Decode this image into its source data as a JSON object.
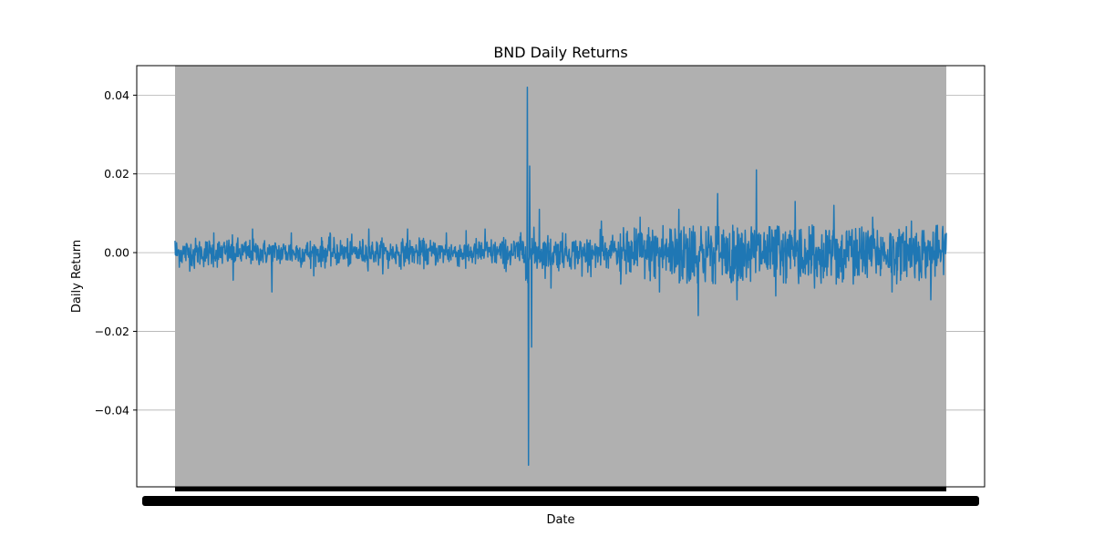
{
  "chart_data": {
    "type": "line",
    "title": "BND Daily Returns",
    "xlabel": "Date",
    "ylabel": "Daily Return",
    "ylim": [
      -0.0595,
      0.0475
    ],
    "yticks": [
      0.04,
      0.02,
      0.0,
      -0.02,
      -0.04
    ],
    "ytick_labels": [
      "0.04",
      "0.02",
      "0.00",
      "−0.02",
      "−0.04"
    ],
    "grid": "y-major",
    "grid_color": "#b0b0b0",
    "background_band_color": "#b0b0b0",
    "series": [
      {
        "color": "#1f77b4",
        "x_index": [
          0,
          50,
          100,
          150,
          200,
          250,
          300,
          350,
          400,
          450,
          500,
          550,
          600,
          650,
          700,
          750,
          800,
          850,
          890,
          905,
          909,
          912,
          915,
          920,
          940,
          970,
          1000,
          1050,
          1100,
          1150,
          1200,
          1250,
          1300,
          1350,
          1400,
          1450,
          1500,
          1550,
          1600,
          1650,
          1700,
          1750,
          1800,
          1850,
          1900,
          1950,
          1990
        ],
        "values": [
          0.003,
          -0.004,
          0.005,
          -0.007,
          0.006,
          -0.01,
          0.005,
          -0.004,
          0.005,
          -0.003,
          0.006,
          -0.004,
          0.006,
          -0.003,
          0.005,
          -0.004,
          0.006,
          -0.004,
          0.004,
          -0.007,
          0.042,
          -0.054,
          0.022,
          -0.024,
          0.011,
          -0.009,
          0.005,
          -0.006,
          0.008,
          -0.008,
          0.009,
          -0.01,
          0.011,
          -0.016,
          0.015,
          -0.012,
          0.021,
          -0.011,
          0.013,
          -0.009,
          0.012,
          -0.008,
          0.009,
          -0.01,
          0.008,
          -0.012,
          0.005
        ],
        "noise_amplitude": [
          0.0018,
          0.0018,
          0.0018,
          0.0018,
          0.0016,
          0.0016,
          0.0017,
          0.0017,
          0.0017,
          0.0017,
          0.0016,
          0.0016,
          0.0016,
          0.0016,
          0.0016,
          0.0017,
          0.0017,
          0.0018,
          0.002,
          0.0025,
          0.003,
          0.003,
          0.003,
          0.0028,
          0.0024,
          0.0022,
          0.002,
          0.002,
          0.0022,
          0.0024,
          0.003,
          0.0038,
          0.0045,
          0.0045,
          0.0045,
          0.0045,
          0.0045,
          0.0043,
          0.0042,
          0.004,
          0.004,
          0.0038,
          0.0036,
          0.0036,
          0.0034,
          0.0033,
          0.003
        ]
      }
    ],
    "n_points": 1991
  }
}
